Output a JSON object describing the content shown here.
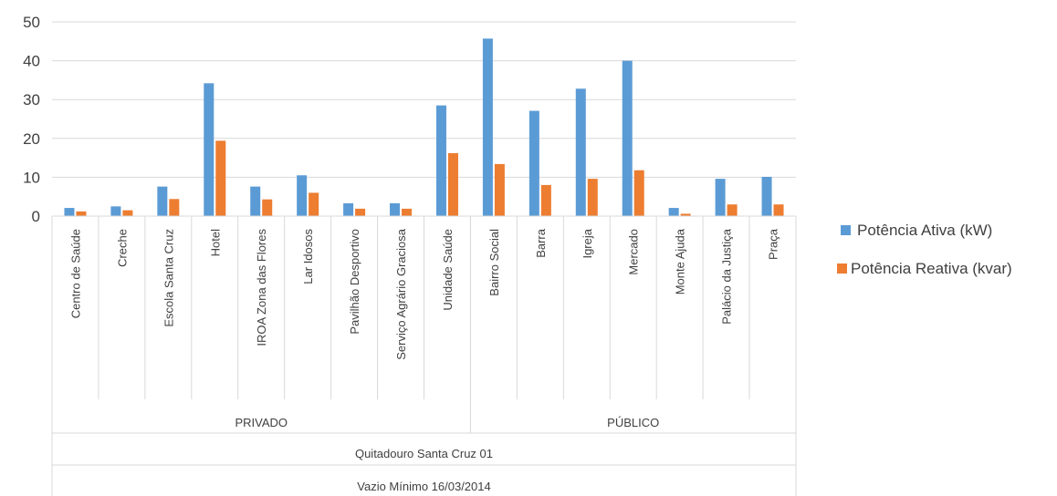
{
  "chart_data": {
    "type": "bar",
    "ylim": [
      0,
      50
    ],
    "yticks": [
      "0",
      "10",
      "20",
      "30",
      "40",
      "50"
    ],
    "grid": true,
    "legend_position": "right",
    "categories": [
      "Centro de Saúde",
      "Creche",
      "Escola Santa Cruz",
      "Hotel",
      "IROA Zona das Flores",
      "Lar Idosos",
      "Pavilhão Desportivo",
      "Serviço Agrário Graciosa",
      "Unidade Saúde",
      "Bairro Social",
      "Barra",
      "Igreja",
      "Mercado",
      "Monte Ajuda",
      "Palácio da Justiça",
      "Praça"
    ],
    "groups": [
      {
        "label": "PRIVADO",
        "count": 9
      },
      {
        "label": "PÚBLICO",
        "count": 7
      }
    ],
    "outer_labels": [
      "Quitadouro Santa Cruz 01",
      "Vazio Mínimo 16/03/2014"
    ],
    "series": [
      {
        "name": "Potência Ativa (kW)",
        "color": "#5B9BD5",
        "values": [
          2.1,
          2.5,
          7.6,
          34.2,
          7.6,
          10.5,
          3.3,
          3.3,
          28.5,
          45.7,
          27.1,
          32.8,
          40.0,
          2.1,
          9.6,
          10.1
        ]
      },
      {
        "name": "Potência Reativa (kvar)",
        "color": "#ED7D31",
        "values": [
          1.2,
          1.5,
          4.4,
          19.4,
          4.3,
          6.0,
          1.9,
          1.9,
          16.2,
          13.4,
          8.0,
          9.6,
          11.8,
          0.6,
          3.0,
          3.0
        ]
      }
    ]
  }
}
